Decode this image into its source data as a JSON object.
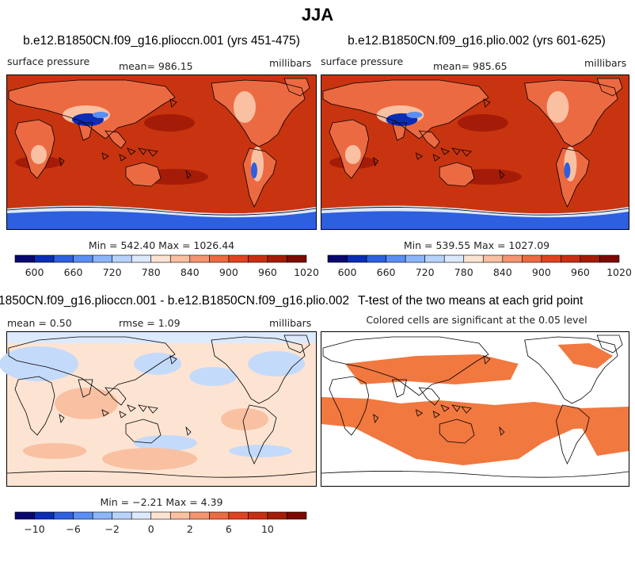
{
  "figure": {
    "title": "JJA"
  },
  "panels": [
    {
      "title": "b.e12.B1850CN.f09_g16.plioccn.001 (yrs 451-475)",
      "left_label": "surface pressure",
      "mean_label": "mean= 986.15",
      "units": "millibars",
      "minmax": "Min = 542.40 Max = 1026.44"
    },
    {
      "title": "b.e12.B1850CN.f09_g16.plio.002 (yrs 601-625)",
      "left_label": "surface pressure",
      "mean_label": "mean= 985.65",
      "units": "millibars",
      "minmax": "Min = 539.55 Max = 1027.09"
    },
    {
      "title": "1850CN.f09_g16.plioccn.001 - b.e12.B1850CN.f09_g16.plio.002",
      "mean_label": "mean =    0.50",
      "rmse_label": "rmse =    1.09",
      "units": "millibars",
      "minmax": "Min =  −2.21 Max =    4.39"
    },
    {
      "title": "T-test of the two means at each grid point",
      "subtitle": "Colored cells are significant at the 0.05 level"
    }
  ],
  "chart_data": [
    {
      "type": "heatmap",
      "title": "b.e12.B1850CN.f09_g16.plioccn.001 (yrs 451-475)",
      "variable": "surface pressure",
      "units": "millibars",
      "mean": 986.15,
      "min": 542.4,
      "max": 1026.44,
      "colorbar": {
        "ticks": [
          "600",
          "660",
          "720",
          "780",
          "840",
          "900",
          "960",
          "1020"
        ],
        "colors": [
          "#08086e",
          "#0b2cb4",
          "#2d5fdf",
          "#5b8ef2",
          "#8db6fa",
          "#b8d3fb",
          "#dde9fc",
          "#fde4d2",
          "#f9c0a2",
          "#f49470",
          "#ec6a42",
          "#e0431f",
          "#c82f12",
          "#a41c08",
          "#7c0a02"
        ]
      }
    },
    {
      "type": "heatmap",
      "title": "b.e12.B1850CN.f09_g16.plio.002 (yrs 601-625)",
      "variable": "surface pressure",
      "units": "millibars",
      "mean": 985.65,
      "min": 539.55,
      "max": 1027.09,
      "colorbar": {
        "ticks": [
          "600",
          "660",
          "720",
          "780",
          "840",
          "900",
          "960",
          "1020"
        ],
        "colors": [
          "#08086e",
          "#0b2cb4",
          "#2d5fdf",
          "#5b8ef2",
          "#8db6fa",
          "#b8d3fb",
          "#dde9fc",
          "#fde4d2",
          "#f9c0a2",
          "#f49470",
          "#ec6a42",
          "#e0431f",
          "#c82f12",
          "#a41c08",
          "#7c0a02"
        ]
      }
    },
    {
      "type": "heatmap",
      "title": "1850CN.f09_g16.plioccn.001 - b.e12.B1850CN.f09_g16.plio.002",
      "units": "millibars",
      "mean": 0.5,
      "rmse": 1.09,
      "min": -2.21,
      "max": 4.39,
      "colorbar": {
        "ticks": [
          "−10",
          "−6",
          "−2",
          "0",
          "2",
          "6",
          "10"
        ],
        "colors": [
          "#08086e",
          "#0b2cb4",
          "#2d5fdf",
          "#5b8ef2",
          "#8db6fa",
          "#b8d3fb",
          "#dde9fc",
          "#fde4d2",
          "#f9c0a2",
          "#f49470",
          "#ec6a42",
          "#e0431f",
          "#c82f12",
          "#a41c08",
          "#7c0a02"
        ]
      }
    },
    {
      "type": "heatmap",
      "title": "T-test of the two means at each grid point",
      "significance_level": 0.05,
      "significant_color": "#f1783f"
    }
  ],
  "colors": {
    "ocean_high": "#c8340f",
    "ocean_high_dark": "#a41c08",
    "land_mid": "#ec6a42",
    "land_low": "#f9c0a2",
    "antarctic": "#2d5fdf",
    "tibet": "#0b2cb4",
    "diff_bg": "#fde4d2",
    "diff_blue": "#c4dafa",
    "diff_blue2": "#dde9fc",
    "diff_red": "#f9c0a2",
    "sig": "#f1783f"
  }
}
